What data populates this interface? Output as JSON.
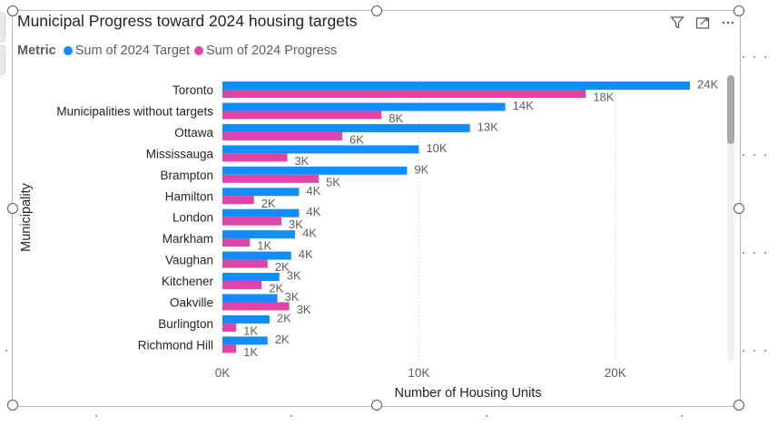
{
  "visual": {
    "title": "Municipal Progress toward 2024 housing targets",
    "header_icons": [
      "filter-icon",
      "focus-mode-icon",
      "more-options-icon"
    ]
  },
  "legend": {
    "title": "Metric",
    "items": [
      {
        "label": "Sum of 2024 Target",
        "color": "#118DFF"
      },
      {
        "label": "Sum of 2024 Progress",
        "color": "#E044A7"
      }
    ]
  },
  "chart_data": {
    "type": "bar",
    "orientation": "horizontal",
    "title": "Municipal Progress toward 2024 housing targets",
    "xlabel": "Number of Housing Units",
    "ylabel": "Municipality",
    "xlim": [
      0,
      25000
    ],
    "xticks": [
      {
        "value": 0,
        "label": "0K"
      },
      {
        "value": 10000,
        "label": "10K"
      },
      {
        "value": 20000,
        "label": "20K"
      }
    ],
    "grid": "vertical dotted",
    "categories": [
      "Toronto",
      "Municipalities without targets",
      "Ottawa",
      "Mississauga",
      "Brampton",
      "Hamilton",
      "London",
      "Markham",
      "Vaughan",
      "Kitchener",
      "Oakville",
      "Burlington",
      "Richmond Hill"
    ],
    "series": [
      {
        "name": "Sum of 2024 Target",
        "color": "#118DFF",
        "values": [
          23800,
          14400,
          12600,
          10000,
          9400,
          3900,
          3900,
          3700,
          3500,
          2900,
          2800,
          2400,
          2300
        ],
        "labels": [
          "24K",
          "14K",
          "13K",
          "10K",
          "9K",
          "4K",
          "4K",
          "4K",
          "4K",
          "3K",
          "3K",
          "2K",
          "2K"
        ]
      },
      {
        "name": "Sum of 2024 Progress",
        "color": "#E044A7",
        "values": [
          18500,
          8100,
          6100,
          3300,
          4900,
          1600,
          3000,
          1400,
          2300,
          2000,
          3400,
          700,
          700
        ],
        "labels": [
          "18K",
          "8K",
          "6K",
          "3K",
          "5K",
          "2K",
          "3K",
          "1K",
          "2K",
          "2K",
          "3K",
          "1K",
          "1K"
        ]
      }
    ]
  }
}
